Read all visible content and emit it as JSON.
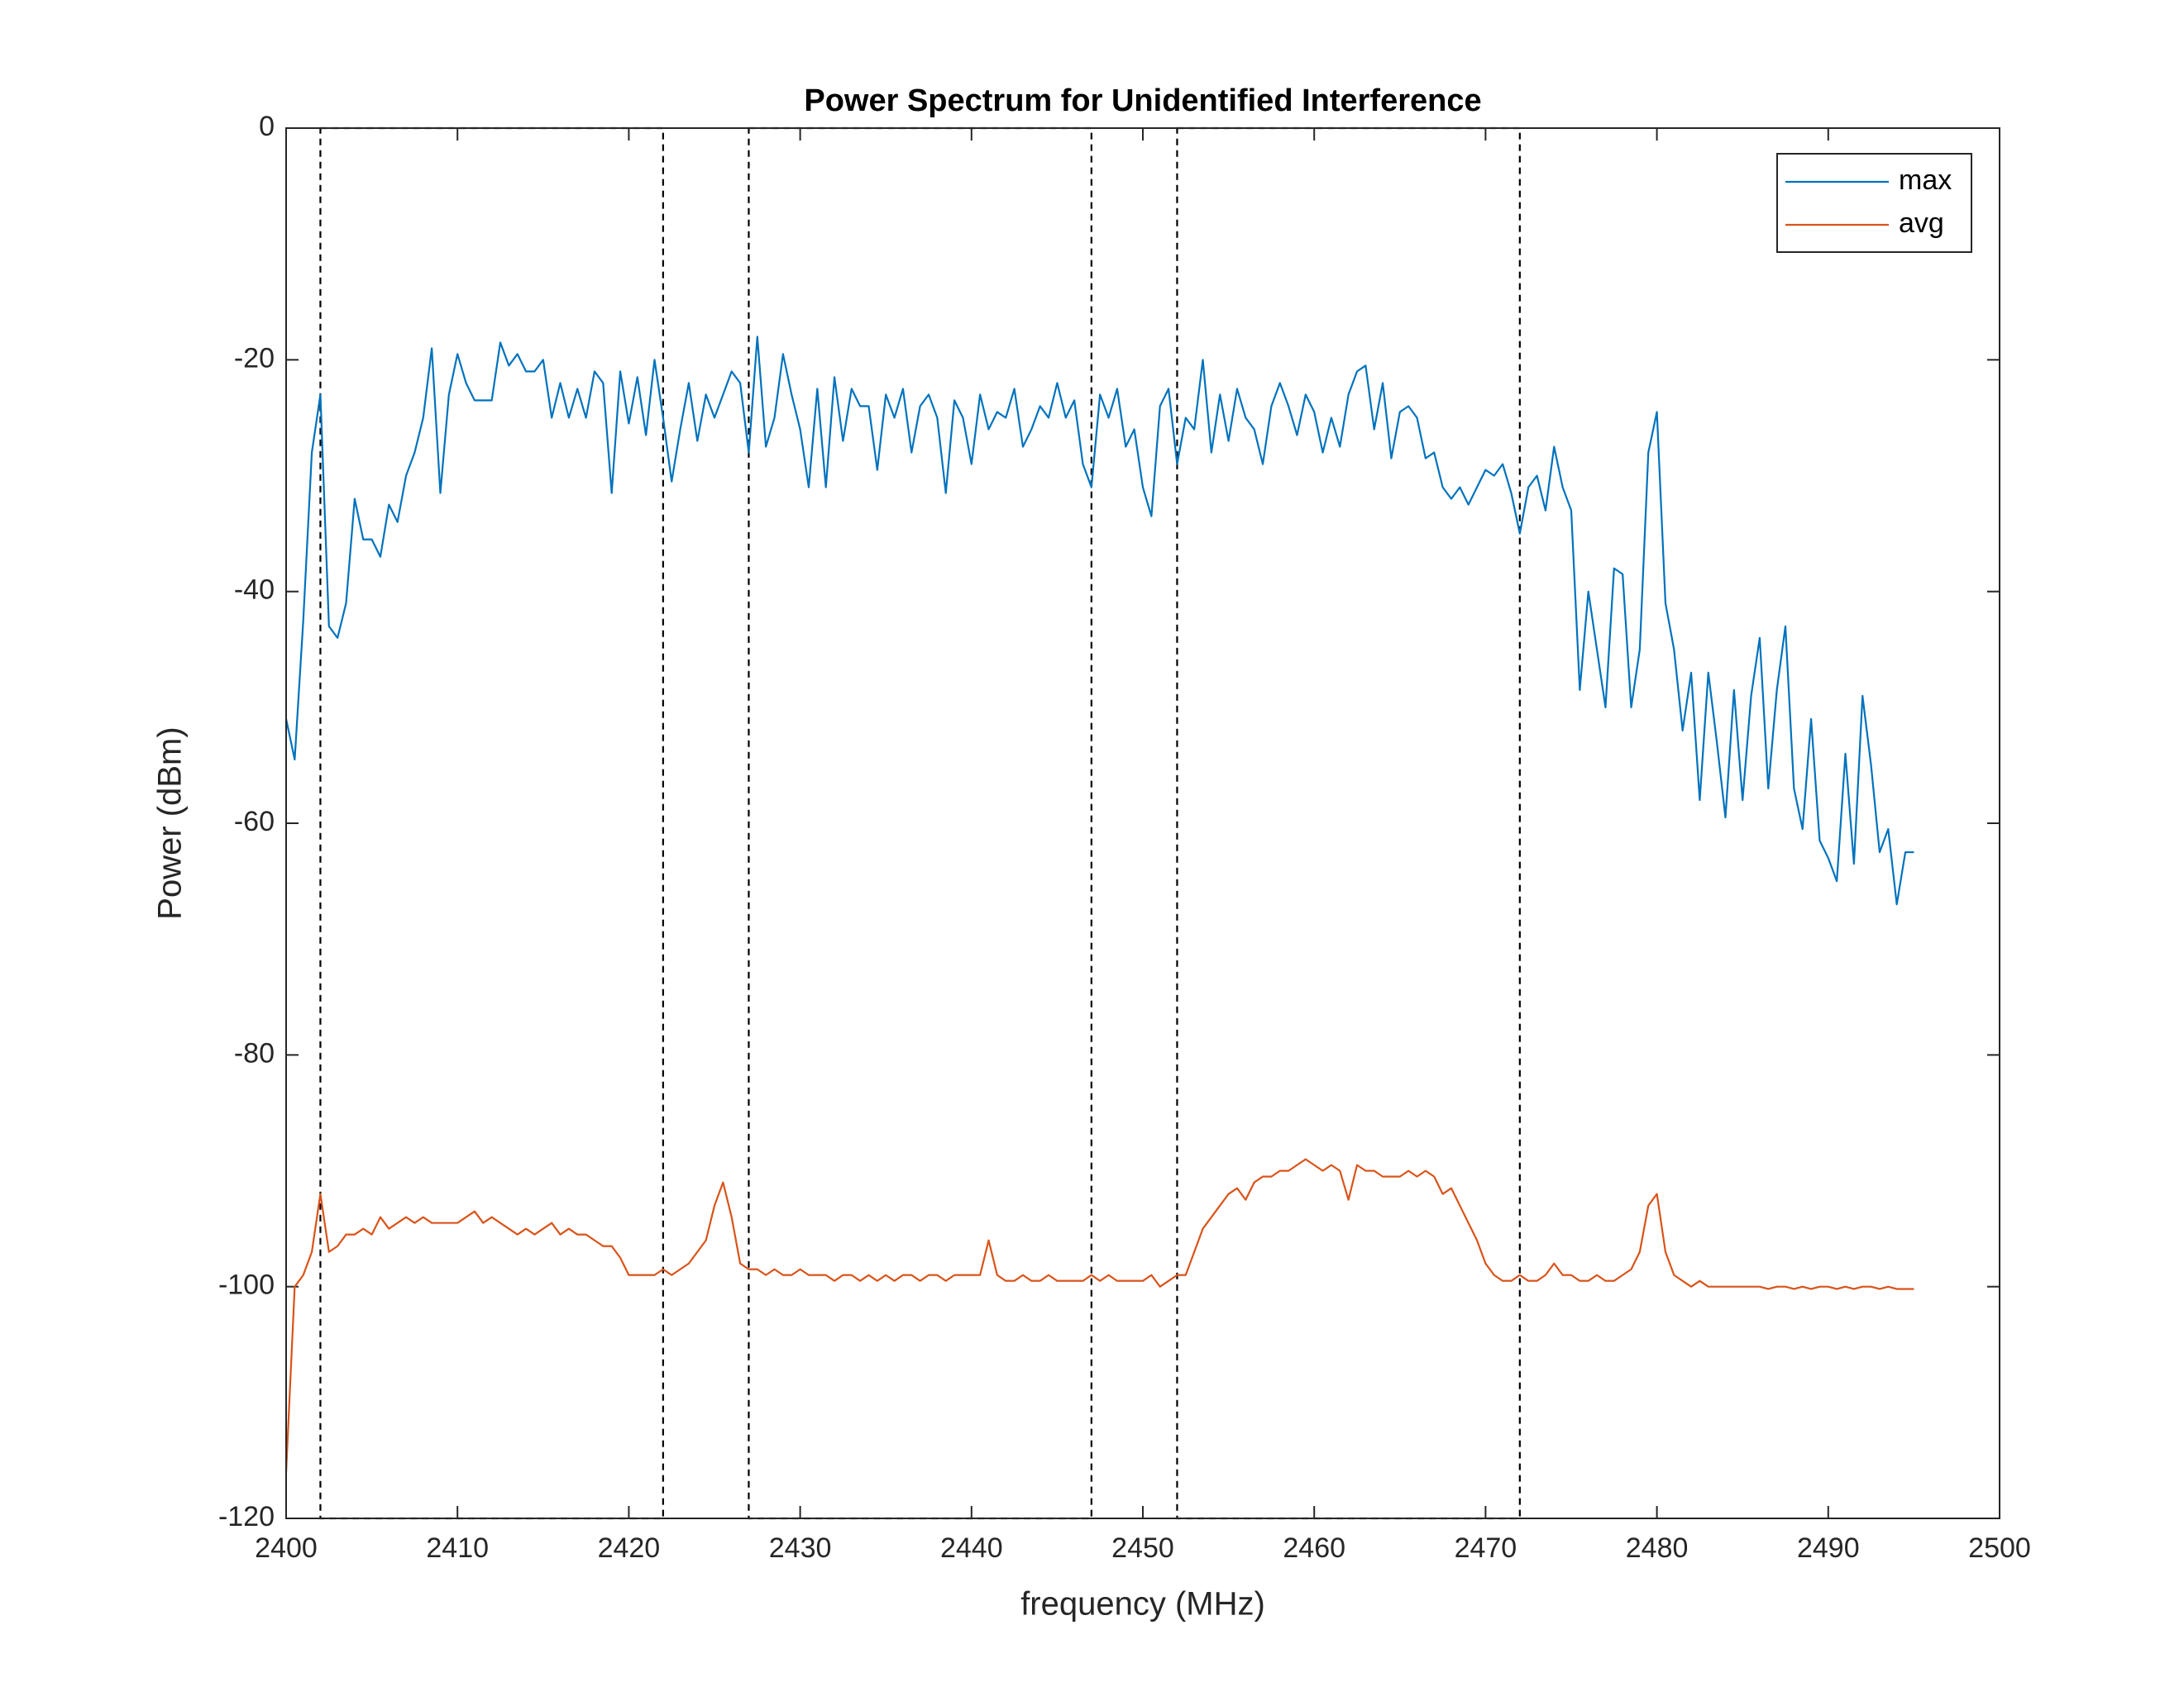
{
  "chart_data": {
    "type": "line",
    "title": "Power Spectrum for Unidentified Interference",
    "xlabel": "frequency (MHz)",
    "ylabel": "Power (dBm)",
    "xlim": [
      2400,
      2500
    ],
    "xticks": [
      2400,
      2410,
      2420,
      2430,
      2440,
      2450,
      2460,
      2470,
      2480,
      2490,
      2500
    ],
    "ylim": [
      -120,
      0
    ],
    "yticks": [
      -120,
      -100,
      -80,
      -60,
      -40,
      -20,
      0
    ],
    "legend": "northeast",
    "channels": [
      [
        2402,
        2422
      ],
      [
        2427,
        2447
      ],
      [
        2452,
        2472
      ]
    ],
    "x": [
      2400,
      2400.5,
      2401,
      2401.5,
      2402,
      2402.5,
      2403,
      2403.5,
      2404,
      2404.5,
      2405,
      2405.5,
      2406,
      2406.5,
      2407,
      2407.5,
      2408,
      2408.5,
      2409,
      2409.5,
      2410,
      2410.5,
      2411,
      2411.5,
      2412,
      2412.5,
      2413,
      2413.5,
      2414,
      2414.5,
      2415,
      2415.5,
      2416,
      2416.5,
      2417,
      2417.5,
      2418,
      2418.5,
      2419,
      2419.5,
      2420,
      2420.5,
      2421,
      2421.5,
      2422,
      2422.5,
      2423,
      2423.5,
      2424,
      2424.5,
      2425,
      2425.5,
      2426,
      2426.5,
      2427,
      2427.5,
      2428,
      2428.5,
      2429,
      2429.5,
      2430,
      2430.5,
      2431,
      2431.5,
      2432,
      2432.5,
      2433,
      2433.5,
      2434,
      2434.5,
      2435,
      2435.5,
      2436,
      2436.5,
      2437,
      2437.5,
      2438,
      2438.5,
      2439,
      2439.5,
      2440,
      2440.5,
      2441,
      2441.5,
      2442,
      2442.5,
      2443,
      2443.5,
      2444,
      2444.5,
      2445,
      2445.5,
      2446,
      2446.5,
      2447,
      2447.5,
      2448,
      2448.5,
      2449,
      2449.5,
      2450,
      2450.5,
      2451,
      2451.5,
      2452,
      2452.5,
      2453,
      2453.5,
      2454,
      2454.5,
      2455,
      2455.5,
      2456,
      2456.5,
      2457,
      2457.5,
      2458,
      2458.5,
      2459,
      2459.5,
      2460,
      2460.5,
      2461,
      2461.5,
      2462,
      2462.5,
      2463,
      2463.5,
      2464,
      2464.5,
      2465,
      2465.5,
      2466,
      2466.5,
      2467,
      2467.5,
      2468,
      2468.5,
      2469,
      2469.5,
      2470,
      2470.5,
      2471,
      2471.5,
      2472,
      2472.5,
      2473,
      2473.5,
      2474,
      2474.5,
      2475,
      2475.5,
      2476,
      2476.5,
      2477,
      2477.5,
      2478,
      2478.5,
      2479,
      2479.5,
      2480,
      2480.5,
      2481,
      2481.5,
      2482,
      2482.5,
      2483,
      2483.5,
      2484,
      2484.5,
      2485,
      2485.5,
      2486,
      2486.5,
      2487,
      2487.5,
      2488,
      2488.5,
      2489,
      2489.5,
      2490,
      2490.5,
      2491,
      2491.5,
      2492,
      2492.5,
      2493,
      2493.5,
      2494,
      2494.5,
      2495
    ],
    "series": [
      {
        "name": "max",
        "color": "#0072bd",
        "values": [
          -51,
          -54.5,
          -42.5,
          -28,
          -23,
          -43,
          -44,
          -41,
          -32,
          -35.5,
          -35.5,
          -37,
          -32.5,
          -34,
          -30,
          -28,
          -25,
          -19,
          -31.5,
          -23,
          -19.5,
          -22,
          -23.5,
          -23.5,
          -23.5,
          -18.5,
          -20.5,
          -19.5,
          -21,
          -21,
          -20,
          -25,
          -22,
          -25,
          -22.5,
          -25,
          -21,
          -22,
          -31.5,
          -21,
          -25.5,
          -21.5,
          -26.5,
          -20,
          -25,
          -30.5,
          -26,
          -22,
          -27,
          -23,
          -25,
          -23,
          -21,
          -22,
          -28,
          -18,
          -27.5,
          -25,
          -19.5,
          -23,
          -26,
          -31,
          -22.5,
          -31,
          -21.5,
          -27,
          -22.5,
          -24,
          -24,
          -29.5,
          -23,
          -25,
          -22.5,
          -28,
          -24,
          -23,
          -25,
          -31.5,
          -23.5,
          -25,
          -29,
          -23,
          -26,
          -24.5,
          -25,
          -22.5,
          -27.5,
          -26,
          -24,
          -25,
          -22,
          -25,
          -23.5,
          -29,
          -31,
          -23,
          -25,
          -22.5,
          -27.5,
          -26,
          -31,
          -33.5,
          -24,
          -22.5,
          -29,
          -25,
          -26,
          -20,
          -28,
          -23,
          -27,
          -22.5,
          -25,
          -26,
          -29,
          -24,
          -22,
          -24,
          -26.5,
          -23,
          -24.5,
          -28,
          -25,
          -27.5,
          -23,
          -21,
          -20.5,
          -26,
          -22,
          -28.5,
          -24.5,
          -24,
          -25,
          -28.5,
          -28,
          -31,
          -32,
          -31,
          -32.5,
          -31,
          -29.5,
          -30,
          -29,
          -31.5,
          -35,
          -31,
          -30,
          -33,
          -27.5,
          -31,
          -33,
          -48.5,
          -40,
          -45,
          -50,
          -38,
          -38.5,
          -50,
          -45,
          -28,
          -24.5,
          -41,
          -45,
          -52,
          -47,
          -58,
          -47,
          -53,
          -59.5,
          -48.5,
          -58,
          -49,
          -44,
          -57,
          -48.5,
          -43,
          -57,
          -60.5,
          -51,
          -61.5,
          -63,
          -65,
          -54,
          -63.5,
          -49,
          -55,
          -62.5,
          -60.5,
          -67,
          -62.5,
          -62.5
        ]
      },
      {
        "name": "avg",
        "color": "#d95319",
        "values": [
          -116,
          -100,
          -99,
          -97,
          -92,
          -97,
          -96.5,
          -95.5,
          -95.5,
          -95,
          -95.5,
          -94,
          -95,
          -94.5,
          -94,
          -94.5,
          -94,
          -94.5,
          -94.5,
          -94.5,
          -94.5,
          -94,
          -93.5,
          -94.5,
          -94,
          -94.5,
          -95,
          -95.5,
          -95,
          -95.5,
          -95,
          -94.5,
          -95.5,
          -95,
          -95.5,
          -95.5,
          -96,
          -96.5,
          -96.5,
          -97.5,
          -99,
          -99,
          -99,
          -99,
          -98.5,
          -99,
          -98.5,
          -98,
          -97,
          -96,
          -93,
          -91,
          -94,
          -98,
          -98.5,
          -98.5,
          -99,
          -98.5,
          -99,
          -99,
          -98.5,
          -99,
          -99,
          -99,
          -99.5,
          -99,
          -99,
          -99.5,
          -99,
          -99.5,
          -99,
          -99.5,
          -99,
          -99,
          -99.5,
          -99,
          -99,
          -99.5,
          -99,
          -99,
          -99,
          -99,
          -96,
          -99,
          -99.5,
          -99.5,
          -99,
          -99.5,
          -99.5,
          -99,
          -99.5,
          -99.5,
          -99.5,
          -99.5,
          -99,
          -99.5,
          -99,
          -99.5,
          -99.5,
          -99.5,
          -99.5,
          -99,
          -100,
          -99.5,
          -99,
          -99,
          -97,
          -95,
          -94,
          -93,
          -92,
          -91.5,
          -92.5,
          -91,
          -90.5,
          -90.5,
          -90,
          -90,
          -89.5,
          -89,
          -89.5,
          -90,
          -89.5,
          -90,
          -92.5,
          -89.5,
          -90,
          -90,
          -90.5,
          -90.5,
          -90.5,
          -90,
          -90.5,
          -90,
          -90.5,
          -92,
          -91.5,
          -93,
          -94.5,
          -96,
          -98,
          -99,
          -99.5,
          -99.5,
          -99,
          -99.5,
          -99.5,
          -99,
          -98,
          -99,
          -99,
          -99.5,
          -99.5,
          -99,
          -99.5,
          -99.5,
          -99,
          -98.5,
          -97,
          -93,
          -92,
          -97,
          -99,
          -99.5,
          -100,
          -99.5,
          -100,
          -100,
          -100,
          -100,
          -100,
          -100,
          -100,
          -100.2,
          -100,
          -100,
          -100.2,
          -100,
          -100.2,
          -100,
          -100,
          -100.2,
          -100,
          -100.2,
          -100,
          -100,
          -100.2,
          -100,
          -100.2,
          -100.2,
          -100.2
        ]
      }
    ]
  }
}
